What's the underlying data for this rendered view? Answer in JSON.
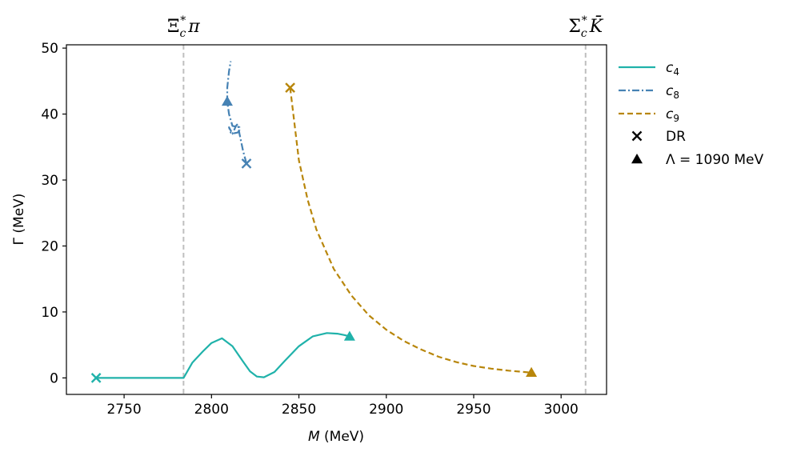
{
  "chart_data": {
    "type": "line",
    "xlabel": "M (MeV)",
    "ylabel": "Γ (MeV)",
    "xlim": [
      2717,
      3026
    ],
    "ylim": [
      -2.5,
      50.5
    ],
    "xticks": [
      2750,
      2800,
      2850,
      2900,
      2950,
      3000
    ],
    "yticks": [
      0,
      10,
      20,
      30,
      40,
      50
    ],
    "thresholds": [
      {
        "label": "Ξ_c^* π",
        "text_main": "Ξ",
        "text_sub": "c",
        "text_sup": "*",
        "text_after": "π",
        "x": 2784,
        "color": "#bfbfbf"
      },
      {
        "label": "Σ_c^* K̄",
        "text_main": "Σ",
        "text_sub": "c",
        "text_sup": "*",
        "text_after": "K̄",
        "x": 3014,
        "color": "#bfbfbf"
      }
    ],
    "series": [
      {
        "name": "c4",
        "label_main": "c",
        "label_sub": "4",
        "color": "#20b2aa",
        "dash": "solid",
        "x": [
          2734,
          2750,
          2770,
          2784,
          2789,
          2795,
          2800,
          2806,
          2812,
          2818,
          2822,
          2826,
          2830,
          2836,
          2842,
          2850,
          2858,
          2866,
          2872,
          2876,
          2879
        ],
        "y": [
          0,
          0,
          0,
          0,
          2.3,
          4.0,
          5.3,
          6.0,
          4.8,
          2.5,
          1.0,
          0.2,
          0.1,
          0.9,
          2.6,
          4.8,
          6.3,
          6.8,
          6.7,
          6.5,
          6.3
        ],
        "dr": {
          "x": 2734,
          "y": 0
        },
        "lambda_pt": {
          "x": 2879,
          "y": 6.3
        }
      },
      {
        "name": "c8",
        "label_main": "c",
        "label_sub": "8",
        "color": "#4682b4",
        "dash": "dashdot",
        "x": [
          2820,
          2818,
          2816,
          2815,
          2814,
          2812,
          2810,
          2811,
          2813,
          2815,
          2816,
          2816,
          2812,
          2810,
          2809,
          2809,
          2810,
          2811
        ],
        "y": [
          32.5,
          34.5,
          37.0,
          38.5,
          38.2,
          37.0,
          38.0,
          37.2,
          37.1,
          37.2,
          37.6,
          38.0,
          38.2,
          40.0,
          41.9,
          44.0,
          46.5,
          48.0
        ],
        "dr": {
          "x": 2820,
          "y": 32.5
        },
        "lambda_pt": {
          "x": 2809,
          "y": 41.9
        }
      },
      {
        "name": "c9",
        "label_main": "c",
        "label_sub": "9",
        "color": "#b8860b",
        "dash": "dashed",
        "x": [
          2845,
          2850,
          2855,
          2860,
          2870,
          2880,
          2890,
          2900,
          2910,
          2920,
          2930,
          2940,
          2950,
          2960,
          2970,
          2983
        ],
        "y": [
          44,
          33,
          27,
          22.5,
          16.5,
          12.5,
          9.5,
          7.3,
          5.6,
          4.3,
          3.2,
          2.4,
          1.8,
          1.4,
          1.1,
          0.8
        ],
        "dr": {
          "x": 2845,
          "y": 44
        },
        "lambda_pt": {
          "x": 2983,
          "y": 0.8
        }
      }
    ],
    "legend": {
      "position": "outside-right",
      "marker_entries": [
        {
          "name": "DR",
          "marker": "x"
        },
        {
          "name": "Λ = 1090 MeV",
          "marker": "triangle"
        }
      ]
    }
  }
}
